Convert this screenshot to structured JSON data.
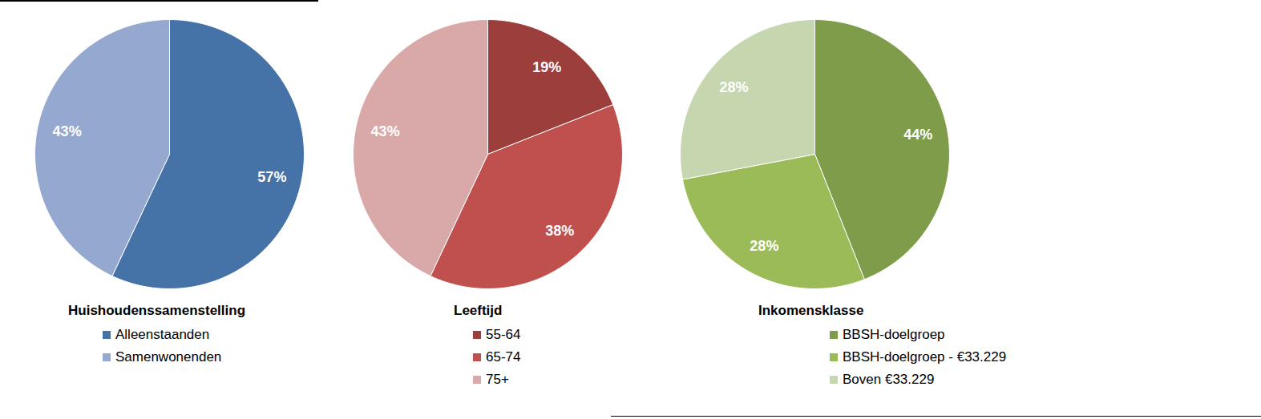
{
  "chart_data": [
    {
      "type": "pie",
      "title": "Huishoudenssamenstelling",
      "categories": [
        "Alleenstaanden",
        "Samenwonenden"
      ],
      "values": [
        57,
        43
      ],
      "value_labels": [
        "57%",
        "43%"
      ],
      "colors": [
        "#4573A7",
        "#95A9D0"
      ],
      "data_labels": true,
      "legend": "bottom"
    },
    {
      "type": "pie",
      "title": "Leeftijd",
      "categories": [
        "55-64",
        "65-74",
        "75+"
      ],
      "values": [
        19,
        38,
        43
      ],
      "value_labels": [
        "19%",
        "38%",
        "43%"
      ],
      "colors": [
        "#9C3E3C",
        "#C0504D",
        "#D9A9A9"
      ],
      "data_labels": true,
      "legend": "bottom"
    },
    {
      "type": "pie",
      "title": "Inkomensklasse",
      "categories": [
        "BBSH-doelgroep",
        "BBSH-doelgroep - €33.229",
        "Boven €33.229"
      ],
      "values": [
        44,
        28,
        28
      ],
      "value_labels": [
        "44%",
        "28%",
        "28%"
      ],
      "colors": [
        "#7F9C4A",
        "#9BBB59",
        "#C6D7AF"
      ],
      "data_labels": true,
      "legend": "bottom"
    }
  ]
}
